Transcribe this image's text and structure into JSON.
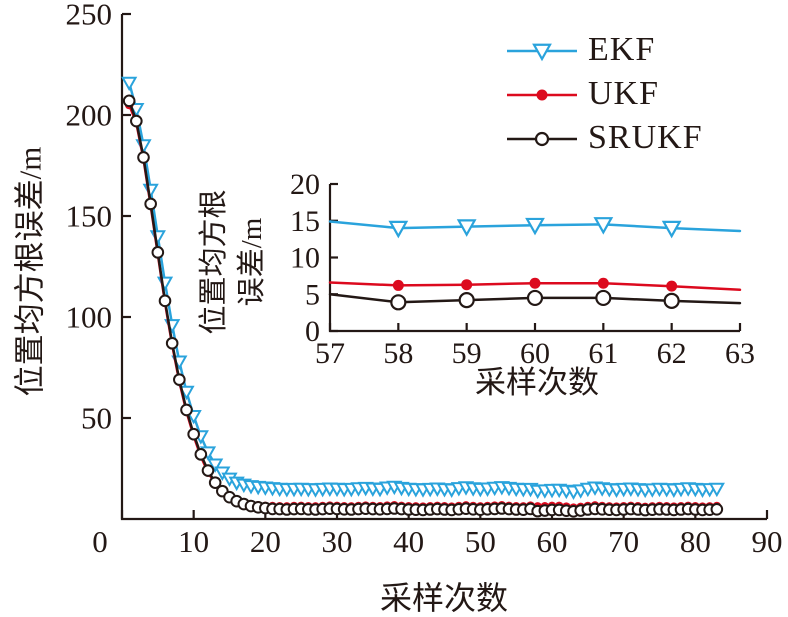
{
  "colors": {
    "ekf": "#2aa3dc",
    "ukf": "#dc0a1e",
    "srukf": "#231815",
    "axis": "#231815",
    "background": "#ffffff"
  },
  "legend": {
    "items": [
      {
        "label": "EKF",
        "marker": "triangle-down-open",
        "color": "#2aa3dc"
      },
      {
        "label": "UKF",
        "marker": "circle-filled",
        "color": "#dc0a1e"
      },
      {
        "label": "SRUKF",
        "marker": "circle-open",
        "color": "#231815"
      }
    ]
  },
  "chart_data": [
    {
      "id": "main",
      "type": "line",
      "title": "",
      "xlabel": "采样次数",
      "ylabel": "位置均方根误差/m",
      "xlim": [
        0,
        90
      ],
      "ylim": [
        0,
        250
      ],
      "xticks": [
        0,
        10,
        20,
        30,
        40,
        50,
        60,
        70,
        80,
        90
      ],
      "yticks": [
        50,
        100,
        150,
        200,
        250
      ],
      "grid": false,
      "legend_position": "top-right-inside",
      "x": [
        1,
        2,
        3,
        4,
        5,
        6,
        7,
        8,
        9,
        10,
        11,
        12,
        13,
        14,
        15,
        16,
        17,
        18,
        19,
        20,
        21,
        22,
        23,
        24,
        25,
        26,
        27,
        28,
        29,
        30,
        31,
        32,
        33,
        34,
        35,
        36,
        37,
        38,
        39,
        40,
        41,
        42,
        43,
        44,
        45,
        46,
        47,
        48,
        49,
        50,
        51,
        52,
        53,
        54,
        55,
        56,
        57,
        58,
        59,
        60,
        61,
        62,
        63,
        64,
        65,
        66,
        67,
        68,
        69,
        70,
        71,
        72,
        73,
        74,
        75,
        76,
        77,
        78,
        79,
        80,
        81,
        82,
        83
      ],
      "series": [
        {
          "name": "EKF",
          "color": "#2aa3dc",
          "marker": "triangle-down-open",
          "values": [
            216,
            203,
            185,
            163,
            140,
            117,
            96,
            78,
            63,
            51,
            41,
            33,
            27,
            23,
            20,
            18,
            17,
            16.3,
            15.9,
            15.6,
            15.3,
            15,
            14.8,
            14.9,
            15,
            14.8,
            14.7,
            14.9,
            15.1,
            15,
            14.8,
            14.9,
            15.2,
            15.4,
            15.1,
            14.9,
            15.6,
            16,
            15.4,
            15,
            14.8,
            14.7,
            14.9,
            15.1,
            14.8,
            14.6,
            15.3,
            15.7,
            15.2,
            14.9,
            15.1,
            15.5,
            15.8,
            15.4,
            15,
            14.8,
            14.9,
            14,
            14.2,
            14.4,
            14.5,
            14,
            13.6,
            14.2,
            15,
            15.6,
            15.2,
            14.8,
            14.6,
            14.9,
            15.1,
            14.8,
            14.5,
            14.7,
            15,
            14.8,
            14.6,
            14.9,
            15.2,
            14.9,
            14.6,
            14.8,
            15
          ]
        },
        {
          "name": "UKF",
          "color": "#dc0a1e",
          "marker": "circle-filled",
          "values": [
            205,
            196,
            178,
            155,
            131,
            107,
            86,
            68,
            53,
            41,
            31,
            23,
            17.5,
            13.5,
            10.8,
            9,
            7.9,
            7.2,
            6.8,
            6.5,
            6.4,
            6.3,
            6.2,
            6.4,
            6.5,
            6.3,
            6.2,
            6.4,
            6.6,
            6.5,
            6.3,
            6.2,
            6.4,
            6.6,
            6.4,
            6.3,
            6.6,
            6.8,
            6.5,
            6.3,
            6.2,
            6.1,
            6.3,
            6.5,
            6.3,
            6.1,
            6.4,
            6.7,
            6.4,
            6.2,
            6.4,
            6.6,
            6.8,
            6.5,
            6.3,
            6.2,
            6.6,
            6.2,
            6.3,
            6.5,
            6.5,
            6.1,
            5.6,
            6,
            6.4,
            6.7,
            6.4,
            6.2,
            6.1,
            6.3,
            6.5,
            6.3,
            6,
            6.2,
            6.4,
            6.3,
            6.1,
            6.3,
            6.5,
            6.3,
            6.1,
            6.2,
            6.4
          ]
        },
        {
          "name": "SRUKF",
          "color": "#231815",
          "marker": "circle-open",
          "values": [
            207,
            197,
            179,
            156,
            132,
            108,
            87,
            69,
            54,
            42,
            32,
            24,
            18,
            13.8,
            10.8,
            8.8,
            7.4,
            6.4,
            5.8,
            5.4,
            5,
            4.9,
            4.7,
            4.9,
            5,
            4.8,
            4.7,
            4.9,
            5.1,
            5,
            4.8,
            4.7,
            4.9,
            5.1,
            4.9,
            4.8,
            5,
            5.2,
            4.9,
            4.7,
            4.6,
            4.5,
            4.7,
            4.9,
            4.7,
            4.5,
            4.8,
            5.1,
            4.8,
            4.6,
            4.8,
            5,
            5.2,
            4.9,
            4.7,
            4.6,
            5,
            3.9,
            4.2,
            4.5,
            4.5,
            4.1,
            3.8,
            4.2,
            4.7,
            5,
            4.8,
            4.6,
            4.5,
            4.7,
            4.9,
            4.7,
            4.4,
            4.6,
            4.8,
            4.7,
            4.5,
            4.7,
            4.9,
            4.7,
            4.5,
            4.6,
            4.8
          ]
        }
      ]
    },
    {
      "id": "inset",
      "type": "line",
      "title": "",
      "xlabel": "采样次数",
      "ylabel_lines": [
        "位置均方根",
        "误差/m"
      ],
      "xlim": [
        57,
        63
      ],
      "ylim": [
        0,
        20
      ],
      "xticks": [
        57,
        58,
        59,
        60,
        61,
        62,
        63
      ],
      "yticks": [
        0,
        5,
        10,
        15,
        20
      ],
      "grid": false,
      "marker_x_range": [
        58,
        62
      ],
      "x": [
        57,
        58,
        59,
        60,
        61,
        62,
        63
      ],
      "series": [
        {
          "name": "EKF",
          "color": "#2aa3dc",
          "marker": "triangle-down-open",
          "values": [
            14.9,
            14,
            14.2,
            14.4,
            14.5,
            14,
            13.6
          ]
        },
        {
          "name": "UKF",
          "color": "#dc0a1e",
          "marker": "circle-filled",
          "values": [
            6.6,
            6.2,
            6.3,
            6.5,
            6.5,
            6.1,
            5.6
          ]
        },
        {
          "name": "SRUKF",
          "color": "#231815",
          "marker": "circle-open",
          "values": [
            5,
            3.9,
            4.2,
            4.5,
            4.5,
            4.1,
            3.8
          ]
        }
      ]
    }
  ]
}
